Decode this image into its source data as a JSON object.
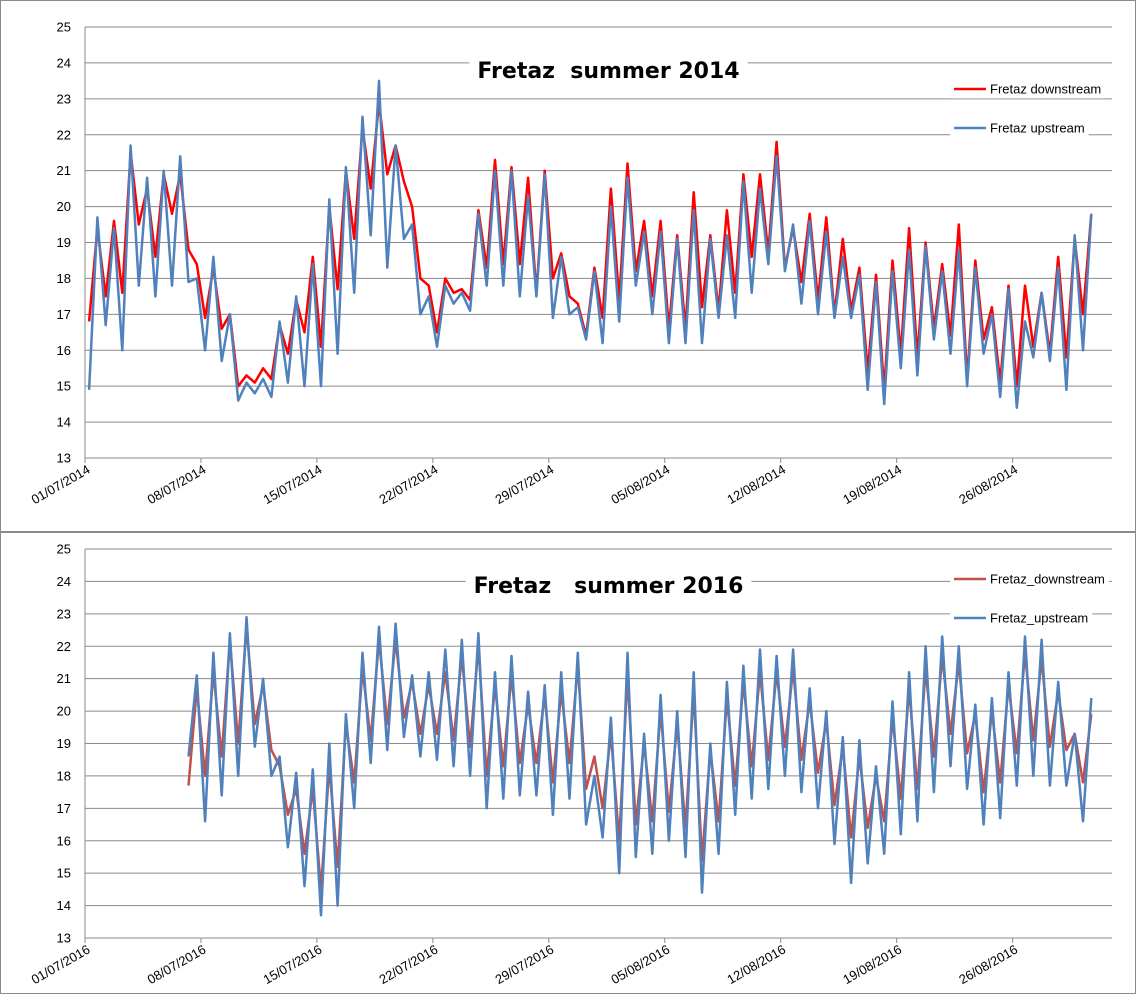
{
  "chart_data": [
    {
      "type": "line",
      "title": "Fretaz  summer 2014",
      "x": [
        0.25,
        0.75,
        1.25,
        1.75,
        2.25,
        2.75,
        3.25,
        3.75,
        4.25,
        4.75,
        5.25,
        5.75,
        6.25,
        6.75,
        7.25,
        7.75,
        8.25,
        8.75,
        9.25,
        9.75,
        10.25,
        10.75,
        11.25,
        11.75,
        12.25,
        12.75,
        13.25,
        13.75,
        14.25,
        14.75,
        15.25,
        15.75,
        16.25,
        16.75,
        17.25,
        17.75,
        18.25,
        18.75,
        19.25,
        19.75,
        20.25,
        20.75,
        21.25,
        21.75,
        22.25,
        22.75,
        23.25,
        23.75,
        24.25,
        24.75,
        25.25,
        25.75,
        26.25,
        26.75,
        27.25,
        27.75,
        28.25,
        28.75,
        29.25,
        29.75,
        30.25,
        30.75,
        31.25,
        31.75,
        32.25,
        32.75,
        33.25,
        33.75,
        34.25,
        34.75,
        35.25,
        35.75,
        36.25,
        36.75,
        37.25,
        37.75,
        38.25,
        38.75,
        39.25,
        39.75,
        40.25,
        40.75,
        41.25,
        41.75,
        42.25,
        42.75,
        43.25,
        43.75,
        44.25,
        44.75,
        45.25,
        45.75,
        46.25,
        46.75,
        47.25,
        47.75,
        48.25,
        48.75,
        49.25,
        49.75,
        50.25,
        50.75,
        51.25,
        51.75,
        52.25,
        52.75,
        53.25,
        53.75,
        54.25,
        54.75,
        55.25,
        55.75,
        56.25,
        56.75,
        57.25,
        57.75,
        58.25,
        58.75,
        59.25,
        59.75,
        60.25,
        60.75
      ],
      "series": [
        {
          "name": "Fretaz downstream",
          "color": "#ff0000",
          "values": [
            16.8,
            19.4,
            17.5,
            19.6,
            17.6,
            21.5,
            19.5,
            20.5,
            18.6,
            20.9,
            19.8,
            20.9,
            18.8,
            18.4,
            16.9,
            18.3,
            16.6,
            17.0,
            15.0,
            15.3,
            15.1,
            15.5,
            15.2,
            16.7,
            15.9,
            17.4,
            16.5,
            18.6,
            16.1,
            20.0,
            17.7,
            21.0,
            19.1,
            22.2,
            20.5,
            22.9,
            20.9,
            21.7,
            20.7,
            20.0,
            18.0,
            17.8,
            16.5,
            18.0,
            17.6,
            17.7,
            17.4,
            19.9,
            18.3,
            21.3,
            18.4,
            21.1,
            18.4,
            20.8,
            17.6,
            21.0,
            18.0,
            18.7,
            17.5,
            17.3,
            16.4,
            18.3,
            16.9,
            20.5,
            17.4,
            21.2,
            18.2,
            19.6,
            17.5,
            19.6,
            16.6,
            19.2,
            16.6,
            20.4,
            17.2,
            19.2,
            17.1,
            19.9,
            17.6,
            20.9,
            18.6,
            20.9,
            18.7,
            21.8,
            18.3,
            19.4,
            17.9,
            19.8,
            17.4,
            19.7,
            17.0,
            19.1,
            17.1,
            18.3,
            15.4,
            18.1,
            14.9,
            18.5,
            15.9,
            19.4,
            15.8,
            19.0,
            16.6,
            18.4,
            16.4,
            19.5,
            15.2,
            18.5,
            16.3,
            17.2,
            15.1,
            17.8,
            15.0,
            17.8,
            16.1,
            17.6,
            15.9,
            18.6,
            15.8,
            19.1,
            17.0,
            19.8
          ]
        },
        {
          "name": "Fretaz upstream",
          "color": "#4f81bd",
          "values": [
            14.9,
            19.7,
            16.7,
            19.4,
            16.0,
            21.7,
            17.8,
            20.8,
            17.5,
            21.0,
            17.8,
            21.4,
            17.9,
            18.0,
            16.0,
            18.6,
            15.7,
            17.0,
            14.6,
            15.1,
            14.8,
            15.2,
            14.7,
            16.8,
            15.1,
            17.5,
            15.0,
            18.4,
            15.0,
            20.2,
            15.9,
            21.1,
            17.6,
            22.5,
            19.2,
            23.5,
            18.3,
            21.7,
            19.1,
            19.5,
            17.0,
            17.5,
            16.1,
            17.8,
            17.3,
            17.6,
            17.1,
            19.8,
            17.8,
            21.0,
            17.8,
            21.0,
            17.5,
            20.3,
            17.5,
            20.9,
            16.9,
            18.6,
            17.0,
            17.2,
            16.3,
            18.2,
            16.2,
            20.0,
            16.8,
            20.8,
            17.8,
            19.3,
            17.0,
            19.3,
            16.2,
            19.1,
            16.2,
            19.9,
            16.2,
            19.1,
            16.9,
            19.2,
            16.9,
            20.7,
            17.6,
            20.5,
            18.4,
            21.4,
            18.2,
            19.5,
            17.3,
            19.6,
            17.0,
            19.3,
            16.9,
            18.6,
            16.9,
            18.1,
            14.9,
            17.9,
            14.5,
            18.2,
            15.5,
            18.8,
            15.3,
            18.9,
            16.3,
            18.2,
            15.9,
            18.8,
            15.0,
            18.3,
            15.9,
            17.0,
            14.7,
            17.7,
            14.4,
            16.8,
            15.8,
            17.6,
            15.7,
            18.3,
            14.9,
            19.2,
            16.0,
            19.8
          ]
        }
      ],
      "xlim": [
        0,
        62
      ],
      "ylim": [
        13,
        25
      ],
      "yticks": [
        13,
        14,
        15,
        16,
        17,
        18,
        19,
        20,
        21,
        22,
        23,
        24,
        25
      ],
      "xticks": [
        {
          "value": 0,
          "label": "01/07/2014"
        },
        {
          "value": 7,
          "label": "08/07/2014"
        },
        {
          "value": 14,
          "label": "15/07/2014"
        },
        {
          "value": 21,
          "label": "22/07/2014"
        },
        {
          "value": 28,
          "label": "29/07/2014"
        },
        {
          "value": 35,
          "label": "05/08/2014"
        },
        {
          "value": 42,
          "label": "12/08/2014"
        },
        {
          "value": 49,
          "label": "19/08/2014"
        },
        {
          "value": 56,
          "label": "26/08/2014"
        }
      ],
      "grid": true,
      "legend": "top-right"
    },
    {
      "type": "line",
      "title": "Fretaz   summer 2016",
      "x": [
        6.25,
        6.75,
        7.25,
        7.75,
        8.25,
        8.75,
        9.25,
        9.75,
        10.25,
        10.75,
        11.25,
        11.75,
        12.25,
        12.75,
        13.25,
        13.75,
        14.25,
        14.75,
        15.25,
        15.75,
        16.25,
        16.75,
        17.25,
        17.75,
        18.25,
        18.75,
        19.25,
        19.75,
        20.25,
        20.75,
        21.25,
        21.75,
        22.25,
        22.75,
        23.25,
        23.75,
        24.25,
        24.75,
        25.25,
        25.75,
        26.25,
        26.75,
        27.25,
        27.75,
        28.25,
        28.75,
        29.25,
        29.75,
        30.25,
        30.75,
        31.25,
        31.75,
        32.25,
        32.75,
        33.25,
        33.75,
        34.25,
        34.75,
        35.25,
        35.75,
        36.25,
        36.75,
        37.25,
        37.75,
        38.25,
        38.75,
        39.25,
        39.75,
        40.25,
        40.75,
        41.25,
        41.75,
        42.25,
        42.75,
        43.25,
        43.75,
        44.25,
        44.75,
        45.25,
        45.75,
        46.25,
        46.75,
        47.25,
        47.75,
        48.25,
        48.75,
        49.25,
        49.75,
        50.25,
        50.75,
        51.25,
        51.75,
        52.25,
        52.75,
        53.25,
        53.75,
        54.25,
        54.75,
        55.25,
        55.75,
        56.25,
        56.75,
        57.25,
        57.75,
        58.25,
        58.75,
        59.25,
        59.75,
        60.25,
        60.75
      ],
      "series": [
        {
          "name": "Fretaz_downstream",
          "color": "#c0504d",
          "values": [
            17.7,
            20.7,
            18.0,
            21.2,
            18.6,
            22.2,
            19.0,
            22.6,
            19.6,
            20.8,
            18.8,
            18.3,
            16.8,
            17.6,
            15.6,
            17.6,
            14.5,
            18.3,
            15.2,
            19.6,
            17.8,
            21.3,
            19.1,
            22.2,
            19.6,
            22.2,
            19.8,
            20.9,
            19.3,
            20.8,
            19.3,
            21.2,
            19.1,
            21.7,
            18.9,
            22.0,
            18.0,
            20.8,
            18.3,
            21.1,
            18.4,
            20.2,
            18.4,
            20.5,
            17.8,
            20.6,
            18.4,
            21.4,
            17.6,
            18.6,
            17.0,
            19.3,
            16.0,
            21.1,
            16.5,
            19.0,
            16.6,
            20.0,
            16.9,
            19.6,
            16.4,
            20.6,
            15.4,
            18.8,
            16.6,
            20.4,
            17.7,
            20.9,
            18.3,
            21.2,
            18.5,
            21.2,
            18.9,
            21.3,
            18.5,
            20.3,
            18.1,
            19.7,
            17.1,
            18.9,
            16.1,
            18.6,
            16.4,
            18.0,
            16.6,
            19.8,
            17.3,
            20.7,
            17.6,
            21.3,
            18.6,
            21.7,
            19.3,
            21.5,
            18.7,
            19.9,
            17.5,
            20.0,
            17.8,
            20.8,
            18.7,
            21.8,
            19.1,
            21.6,
            18.9,
            20.6,
            18.8,
            19.3,
            17.8,
            19.9
          ]
        },
        {
          "name": "Fretaz_upstream",
          "color": "#4f81bd",
          "values": [
            18.6,
            21.1,
            16.6,
            21.8,
            17.4,
            22.4,
            18.0,
            22.9,
            18.9,
            21.0,
            18.0,
            18.6,
            15.8,
            18.1,
            14.6,
            18.2,
            13.7,
            19.0,
            14.0,
            19.9,
            17.0,
            21.8,
            18.4,
            22.6,
            18.8,
            22.7,
            19.2,
            21.1,
            18.6,
            21.2,
            18.5,
            21.9,
            18.3,
            22.2,
            18.0,
            22.4,
            17.0,
            21.2,
            17.3,
            21.7,
            17.4,
            20.6,
            17.4,
            20.8,
            16.8,
            21.2,
            17.3,
            21.8,
            16.5,
            18.0,
            16.1,
            19.8,
            15.0,
            21.8,
            15.5,
            19.3,
            15.6,
            20.5,
            16.0,
            20.0,
            15.5,
            21.2,
            14.4,
            19.0,
            15.6,
            20.9,
            16.8,
            21.4,
            17.3,
            21.9,
            17.6,
            21.7,
            18.0,
            21.9,
            17.5,
            20.7,
            17.0,
            20.0,
            15.9,
            19.2,
            14.7,
            19.1,
            15.3,
            18.3,
            15.6,
            20.3,
            16.2,
            21.2,
            16.6,
            22.0,
            17.5,
            22.3,
            18.3,
            22.0,
            17.6,
            20.2,
            16.5,
            20.4,
            16.7,
            21.2,
            17.7,
            22.3,
            18.0,
            22.2,
            17.7,
            20.9,
            17.7,
            19.3,
            16.6,
            20.4
          ]
        }
      ],
      "xlim": [
        0,
        62
      ],
      "ylim": [
        13,
        25
      ],
      "yticks": [
        13,
        14,
        15,
        16,
        17,
        18,
        19,
        20,
        21,
        22,
        23,
        24,
        25
      ],
      "xticks": [
        {
          "value": 0,
          "label": "01/07/2016"
        },
        {
          "value": 7,
          "label": "08/07/2016"
        },
        {
          "value": 14,
          "label": "15/07/2016"
        },
        {
          "value": 21,
          "label": "22/07/2016"
        },
        {
          "value": 28,
          "label": "29/07/2016"
        },
        {
          "value": 35,
          "label": "05/08/2016"
        },
        {
          "value": 42,
          "label": "12/08/2016"
        },
        {
          "value": 49,
          "label": "19/08/2016"
        },
        {
          "value": 56,
          "label": "26/08/2016"
        }
      ],
      "grid": true,
      "legend": "top-right"
    }
  ]
}
